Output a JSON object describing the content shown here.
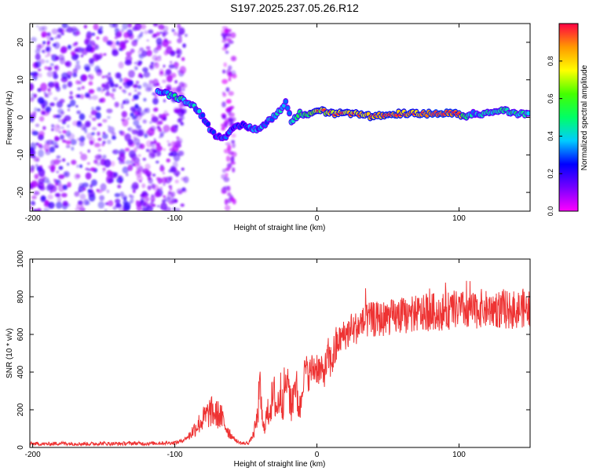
{
  "figure_title": "S197.2025.237.05.26.R12",
  "chart_data": [
    {
      "id": "spectrogram",
      "type": "heatmap",
      "title": "",
      "xlabel": "Height of straight line (km)",
      "ylabel": "Frequency (Hz)",
      "xlim": [
        -202,
        150
      ],
      "ylim": [
        -25,
        25
      ],
      "xticks": [
        -200,
        -100,
        0,
        100
      ],
      "yticks": [
        -20,
        -10,
        0,
        10,
        20
      ],
      "colorbar": {
        "label": "Normalized spectral amplitude",
        "range": [
          0,
          1
        ],
        "ticks": [
          0.0,
          0.2,
          0.4,
          0.6,
          0.8
        ],
        "colormap": [
          "#ff00ff",
          "#7700ff",
          "#0000ff",
          "#00ccff",
          "#00ff66",
          "#44ff00",
          "#ffff00",
          "#ff9900",
          "#ff0044"
        ]
      },
      "background_noise": {
        "x_range": [
          -202,
          -100
        ],
        "freq_range": [
          -25,
          25
        ],
        "amplitude": 0.15
      },
      "vertical_noise_band": {
        "x": -62,
        "freq_range": [
          -25,
          25
        ],
        "amplitude": 0.12
      },
      "ridge": [
        {
          "x": -112,
          "f": 7,
          "a": 0.3
        },
        {
          "x": -104,
          "f": 6,
          "a": 0.4
        },
        {
          "x": -96,
          "f": 5,
          "a": 0.45
        },
        {
          "x": -90,
          "f": 4,
          "a": 0.4
        },
        {
          "x": -84,
          "f": 2,
          "a": 0.35
        },
        {
          "x": -78,
          "f": -1,
          "a": 0.3
        },
        {
          "x": -74,
          "f": -4,
          "a": 0.3
        },
        {
          "x": -70,
          "f": -5,
          "a": 0.25
        },
        {
          "x": -64,
          "f": -5,
          "a": 0.25
        },
        {
          "x": -58,
          "f": -3,
          "a": 0.3
        },
        {
          "x": -52,
          "f": -2,
          "a": 0.3
        },
        {
          "x": -46,
          "f": -3,
          "a": 0.3
        },
        {
          "x": -40,
          "f": -3,
          "a": 0.35
        },
        {
          "x": -34,
          "f": -1,
          "a": 0.35
        },
        {
          "x": -28,
          "f": 1,
          "a": 0.4
        },
        {
          "x": -22,
          "f": 4,
          "a": 0.35
        },
        {
          "x": -18,
          "f": -1,
          "a": 0.4
        },
        {
          "x": -12,
          "f": 1,
          "a": 0.5
        },
        {
          "x": -6,
          "f": 1,
          "a": 0.55
        },
        {
          "x": 0,
          "f": 2,
          "a": 0.7
        },
        {
          "x": 10,
          "f": 1,
          "a": 0.75
        },
        {
          "x": 20,
          "f": 1,
          "a": 0.8
        },
        {
          "x": 30,
          "f": 1,
          "a": 0.8
        },
        {
          "x": 40,
          "f": 0,
          "a": 0.8
        },
        {
          "x": 50,
          "f": 1,
          "a": 0.85
        },
        {
          "x": 60,
          "f": 1,
          "a": 0.85
        },
        {
          "x": 70,
          "f": 1,
          "a": 0.85
        },
        {
          "x": 80,
          "f": 1,
          "a": 0.9
        },
        {
          "x": 90,
          "f": 1,
          "a": 0.9
        },
        {
          "x": 100,
          "f": 1,
          "a": 0.9
        },
        {
          "x": 104,
          "f": 0,
          "a": 0.5
        },
        {
          "x": 110,
          "f": 1,
          "a": 0.35
        },
        {
          "x": 120,
          "f": 1,
          "a": 0.4
        },
        {
          "x": 130,
          "f": 2,
          "a": 0.45
        },
        {
          "x": 140,
          "f": 1,
          "a": 0.45
        },
        {
          "x": 150,
          "f": 1,
          "a": 0.4
        }
      ]
    },
    {
      "id": "snr",
      "type": "line",
      "title": "",
      "xlabel": "Height of straight line (km)",
      "ylabel": "SNR (10 * v/v)",
      "xlim": [
        -202,
        150
      ],
      "ylim": [
        0,
        1000
      ],
      "xticks": [
        -200,
        -100,
        0,
        100
      ],
      "yticks": [
        0,
        200,
        400,
        600,
        800,
        1000
      ],
      "color": "#ee3333",
      "series": [
        {
          "name": "SNR",
          "x": [
            -202,
            -190,
            -180,
            -170,
            -160,
            -150,
            -140,
            -130,
            -120,
            -110,
            -100,
            -95,
            -90,
            -85,
            -80,
            -75,
            -72,
            -68,
            -64,
            -60,
            -56,
            -52,
            -48,
            -45,
            -42,
            -40,
            -38,
            -36,
            -34,
            -32,
            -30,
            -28,
            -26,
            -24,
            -22,
            -20,
            -18,
            -16,
            -14,
            -12,
            -10,
            -8,
            -6,
            -4,
            -2,
            0,
            2,
            4,
            6,
            8,
            10,
            12,
            15,
            18,
            20,
            25,
            30,
            35,
            40,
            45,
            50,
            55,
            60,
            65,
            70,
            75,
            80,
            85,
            90,
            95,
            100,
            105,
            110,
            115,
            120,
            125,
            130,
            135,
            140,
            145,
            150
          ],
          "y": [
            20,
            18,
            22,
            20,
            19,
            21,
            20,
            22,
            21,
            23,
            25,
            35,
            60,
            110,
            150,
            190,
            180,
            170,
            110,
            60,
            30,
            20,
            25,
            60,
            150,
            340,
            90,
            150,
            190,
            240,
            270,
            200,
            300,
            260,
            330,
            350,
            200,
            350,
            280,
            200,
            350,
            420,
            380,
            410,
            420,
            430,
            410,
            390,
            420,
            480,
            450,
            500,
            560,
            590,
            600,
            620,
            650,
            670,
            680,
            680,
            690,
            690,
            700,
            700,
            710,
            710,
            720,
            720,
            720,
            730,
            730,
            730,
            720,
            740,
            730,
            740,
            730,
            730,
            730,
            740,
            730
          ]
        }
      ]
    }
  ]
}
